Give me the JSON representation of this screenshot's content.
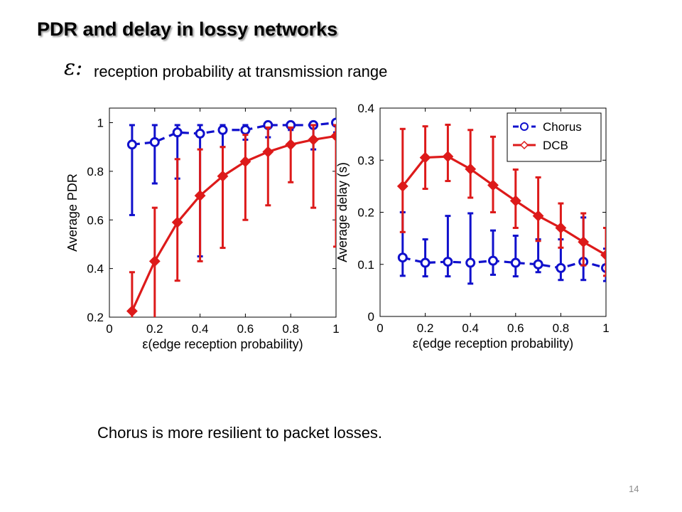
{
  "slide": {
    "title": "PDR and delay in lossy networks",
    "epsilon_symbol": "ε:",
    "subtitle": "reception probability at transmission range",
    "conclusion": "Chorus is more resilient to packet losses.",
    "page_number": "14"
  },
  "colors": {
    "chorus": "#1010cc",
    "dcb": "#dd1a1a"
  },
  "chart_data": [
    {
      "type": "line",
      "xlabel": "ε(edge reception probability)",
      "ylabel": "Average PDR",
      "xlim": [
        0,
        1
      ],
      "ylim": [
        0.2,
        1.06
      ],
      "xticks": [
        0,
        0.2,
        0.4,
        0.6,
        0.8,
        1
      ],
      "xtick_labels": [
        "0",
        "0.2",
        "0.4",
        "0.6",
        "0.8",
        "1"
      ],
      "yticks": [
        0.2,
        0.4,
        0.6,
        0.8,
        1
      ],
      "ytick_labels": [
        "0.2",
        "0.4",
        "0.6",
        "0.8",
        "1"
      ],
      "grid": false,
      "legend": "none",
      "x": [
        0.1,
        0.2,
        0.3,
        0.4,
        0.5,
        0.6,
        0.7,
        0.8,
        0.9,
        1.0
      ],
      "series": [
        {
          "key": "chorus",
          "marker": "circle",
          "dash": true,
          "values": [
            0.91,
            0.92,
            0.96,
            0.955,
            0.97,
            0.97,
            0.99,
            0.99,
            0.99,
            1.0
          ],
          "lower": [
            0.62,
            0.75,
            0.77,
            0.45,
            0.9,
            0.93,
            0.94,
            0.97,
            0.89,
            0.96
          ],
          "upper": [
            0.99,
            0.99,
            0.99,
            0.99,
            0.99,
            0.99,
            1.0,
            1.0,
            1.0,
            1.0
          ]
        },
        {
          "key": "dcb",
          "marker": "diamond",
          "dash": false,
          "values": [
            0.225,
            0.43,
            0.59,
            0.7,
            0.78,
            0.84,
            0.88,
            0.91,
            0.93,
            0.945
          ],
          "lower": [
            0.14,
            0.19,
            0.35,
            0.43,
            0.485,
            0.6,
            0.66,
            0.755,
            0.65,
            0.49
          ],
          "upper": [
            0.385,
            0.65,
            0.85,
            0.89,
            0.9,
            0.95,
            0.98,
            0.98,
            0.99,
            0.99
          ]
        }
      ]
    },
    {
      "type": "line",
      "xlabel": "ε(edge reception probability)",
      "ylabel": "Average delay (s)",
      "xlim": [
        0,
        1
      ],
      "ylim": [
        0,
        0.4
      ],
      "xticks": [
        0,
        0.2,
        0.4,
        0.6,
        0.8,
        1
      ],
      "xtick_labels": [
        "0",
        "0.2",
        "0.4",
        "0.6",
        "0.8",
        "1"
      ],
      "yticks": [
        0,
        0.1,
        0.2,
        0.3,
        0.4
      ],
      "ytick_labels": [
        "0",
        "0.1",
        "0.2",
        "0.3",
        "0.4"
      ],
      "grid": false,
      "legend": "top-right",
      "x": [
        0.1,
        0.2,
        0.3,
        0.4,
        0.5,
        0.6,
        0.7,
        0.8,
        0.9,
        1.0
      ],
      "series": [
        {
          "key": "chorus",
          "name": "Chorus",
          "marker": "circle",
          "dash": true,
          "values": [
            0.113,
            0.103,
            0.105,
            0.103,
            0.107,
            0.103,
            0.1,
            0.093,
            0.105,
            0.093
          ],
          "lower": [
            0.078,
            0.077,
            0.077,
            0.063,
            0.08,
            0.077,
            0.085,
            0.07,
            0.07,
            0.068
          ],
          "upper": [
            0.2,
            0.148,
            0.193,
            0.198,
            0.165,
            0.155,
            0.148,
            0.148,
            0.19,
            0.13
          ]
        },
        {
          "key": "dcb",
          "name": "DCB",
          "marker": "diamond",
          "dash": false,
          "values": [
            0.25,
            0.305,
            0.307,
            0.283,
            0.252,
            0.222,
            0.193,
            0.17,
            0.143,
            0.118
          ],
          "lower": [
            0.162,
            0.245,
            0.26,
            0.228,
            0.2,
            0.17,
            0.145,
            0.132,
            0.098,
            0.078
          ],
          "upper": [
            0.36,
            0.365,
            0.368,
            0.358,
            0.345,
            0.282,
            0.267,
            0.217,
            0.198,
            0.17
          ]
        }
      ]
    }
  ]
}
